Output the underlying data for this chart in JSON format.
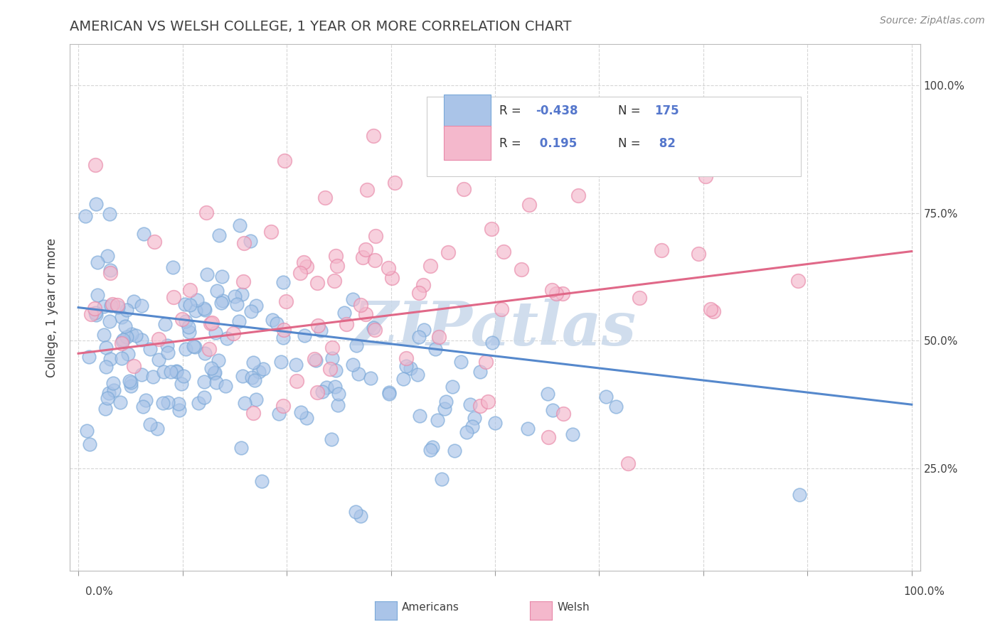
{
  "title": "AMERICAN VS WELSH COLLEGE, 1 YEAR OR MORE CORRELATION CHART",
  "source_text": "Source: ZipAtlas.com",
  "ylabel": "College, 1 year or more",
  "yticks": [
    "25.0%",
    "50.0%",
    "75.0%",
    "100.0%"
  ],
  "ytick_values": [
    0.25,
    0.5,
    0.75,
    1.0
  ],
  "americans": {
    "R": -0.438,
    "N": 175,
    "scatter_color": "#aac4e8",
    "edge_color": "#7aa8d8",
    "line_color": "#5588cc",
    "y_line_start": 0.565,
    "y_line_end": 0.375
  },
  "welsh": {
    "R": 0.195,
    "N": 82,
    "scatter_color": "#f4b8cc",
    "edge_color": "#e888a8",
    "line_color": "#e06888",
    "y_line_start": 0.475,
    "y_line_end": 0.675
  },
  "x_range": [
    0.0,
    1.0
  ],
  "y_range": [
    0.05,
    1.08
  ],
  "background_color": "#ffffff",
  "grid_color": "#cccccc",
  "title_color": "#404040",
  "title_fontsize": 14,
  "watermark_text": "ZIPatlas",
  "watermark_color": "#c8d8ea",
  "legend_box_color": "#5577cc",
  "legend_N_color": "#5577cc",
  "legend_text_color": "#333333"
}
